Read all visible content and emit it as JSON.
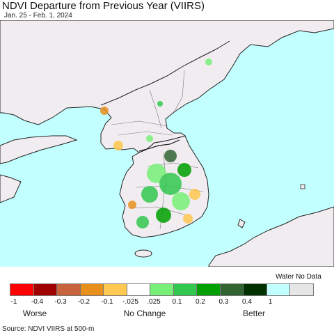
{
  "header": {
    "title": "NDVI Departure from Previous Year (VIIRS)",
    "date_range": "Jan. 25 - Feb. 1, 2024"
  },
  "map": {
    "sea_color": "#c2ffff",
    "land_color": "#f1ecf0",
    "border_color": "#222222",
    "province_color": "#777777"
  },
  "legend": {
    "water_no_data_label": "Water No Data",
    "swatches": [
      {
        "color": "#ff0000"
      },
      {
        "color": "#a00000"
      },
      {
        "color": "#c8643c"
      },
      {
        "color": "#e8901e"
      },
      {
        "color": "#ffc850"
      },
      {
        "color": "#ffffff"
      },
      {
        "color": "#78f078"
      },
      {
        "color": "#32c850"
      },
      {
        "color": "#00a000"
      },
      {
        "color": "#326432"
      },
      {
        "color": "#003200"
      },
      {
        "color": "#c2ffff"
      },
      {
        "color": "#e6e6e6"
      }
    ],
    "ticks": [
      "-1",
      "-0.4",
      "-0.3",
      "-0.2",
      "-0.1",
      "-.025",
      ".025",
      "0.1",
      "0.2",
      "0.3",
      "0.4",
      "1"
    ],
    "categories": {
      "worse": "Worse",
      "no_change": "No Change",
      "better": "Better"
    }
  },
  "footer": {
    "source": "Source: NDVI VIIRS at 500-m"
  }
}
